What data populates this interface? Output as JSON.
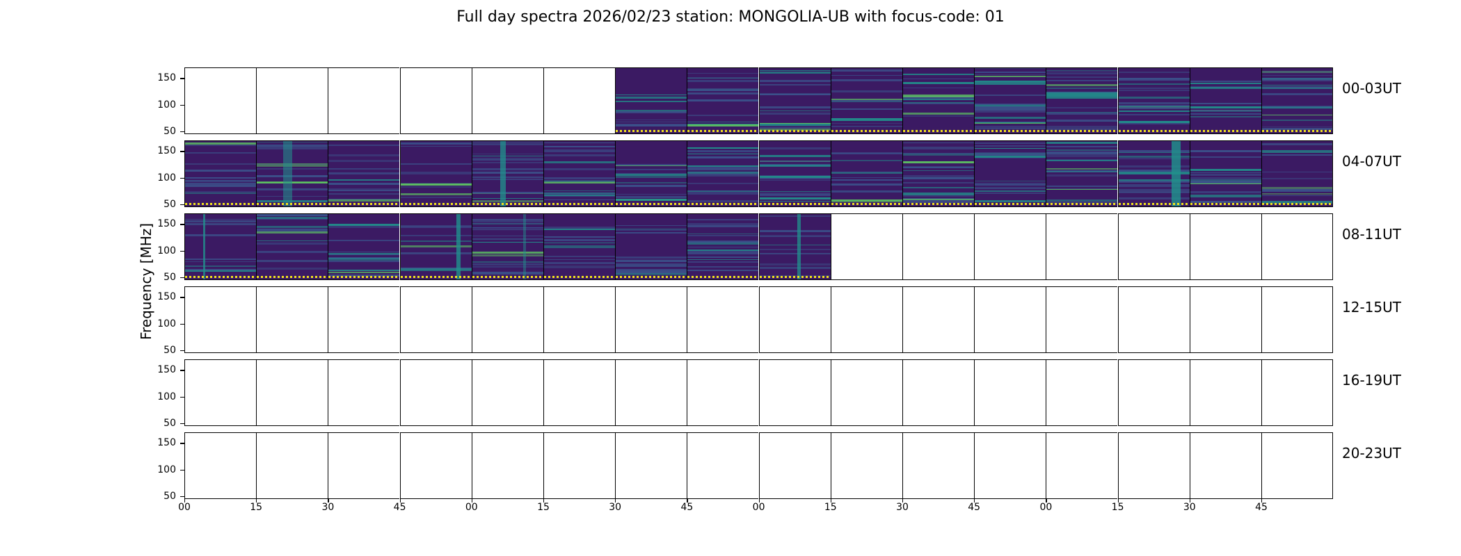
{
  "chart_data": {
    "type": "heatmap",
    "title": "Full day spectra 2026/02/23 station: MONGOLIA-UB with focus-code: 01",
    "ylabel": "Frequency [MHz]",
    "xlabel": "",
    "yticks": [
      "150",
      "100",
      "50"
    ],
    "xticks": [
      "00",
      "15",
      "30",
      "45",
      "00",
      "15",
      "30",
      "45",
      "00",
      "15",
      "30",
      "45",
      "00",
      "15",
      "30",
      "45"
    ],
    "rows": [
      {
        "label": "00-03UT",
        "data_from_panel": 6,
        "data_to_panel": 15
      },
      {
        "label": "04-07UT",
        "data_from_panel": 0,
        "data_to_panel": 15
      },
      {
        "label": "08-11UT",
        "data_from_panel": 0,
        "data_to_panel": 8
      },
      {
        "label": "12-15UT",
        "data_from_panel": null,
        "data_to_panel": null
      },
      {
        "label": "16-19UT",
        "data_from_panel": null,
        "data_to_panel": null
      },
      {
        "label": "20-23UT",
        "data_from_panel": null,
        "data_to_panel": null
      }
    ],
    "panels_per_row": 16,
    "panel_minutes": 15,
    "colormap": [
      "#440154",
      "#3b528b",
      "#21918c",
      "#5ec962",
      "#fde725"
    ]
  }
}
